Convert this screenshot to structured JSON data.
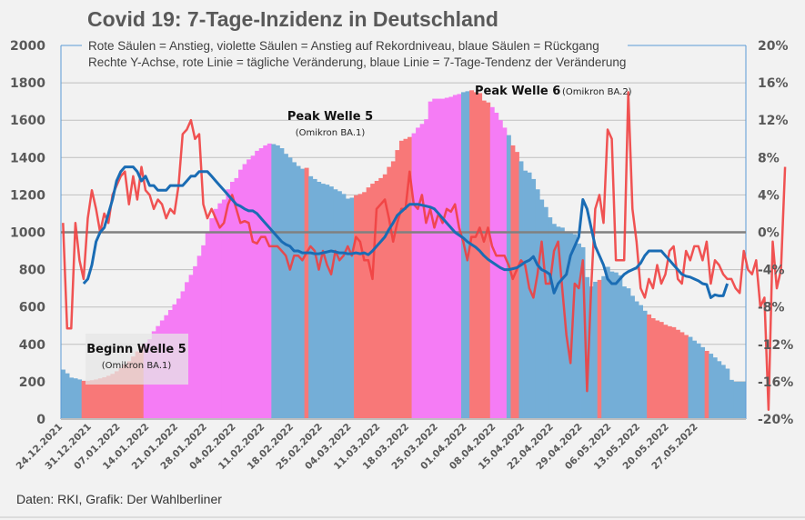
{
  "title": "Covid 19: 7-Tage-Inzidenz in Deutschland",
  "source": "Daten: RKI, Grafik: Der Wahlberliner",
  "chart_data": {
    "type": "bar",
    "title": "Covid 19: 7-Tage-Inzidenz in Deutschland",
    "subtitle_lines": [
      "Rote Säulen = Anstieg, violette Säulen = Anstieg auf Rekordniveau, blaue Säulen = Rückgang",
      "Rechte Y-Achse, rote Linie = tägliche Veränderung, blaue Linie = 7-Tage-Tendenz der Veränderung"
    ],
    "xlabel": "",
    "ylabel": "",
    "ylim": [
      0,
      2000
    ],
    "y_ticks": [
      "0",
      "200",
      "400",
      "600",
      "800",
      "1000",
      "1200",
      "1400",
      "1600",
      "1800",
      "2000"
    ],
    "y2lim": [
      -20,
      20
    ],
    "y2_ticks": [
      "-20%",
      "-16%",
      "-12%",
      "-8%",
      "-4%",
      "0%",
      "4%",
      "8%",
      "12%",
      "16%",
      "20%"
    ],
    "x_tick_labels": [
      "24.12.2021",
      "31.12.2021",
      "07.01.2022",
      "14.01.2022",
      "21.01.2022",
      "28.01.2022",
      "04.02.2022",
      "11.02.2022",
      "18.02.2022",
      "25.02.2022",
      "04.03.2022",
      "11.03.2022",
      "18.03.2022",
      "25.03.2022",
      "01.04.2022",
      "08.04.2022",
      "15.04.2022",
      "22.04.2022",
      "29.04.2022",
      "06.05.2022",
      "13.05.2022",
      "20.05.2022",
      "27.05.2022"
    ],
    "grid": true,
    "colors": {
      "rise": "#f87878",
      "record": "#f57cf5",
      "decline": "#74aed7",
      "daily_line": "#ef4040",
      "trend_line": "#1a6cb4",
      "zero_line": "#808080"
    },
    "bar_categories_legend": {
      "rise": "Anstieg",
      "record": "Anstieg auf Rekordniveau",
      "decline": "Rückgang"
    },
    "series": [
      {
        "name": "7-Tage-Inzidenz",
        "axis": "left",
        "kind": "bar",
        "values": [
          265,
          245,
          222,
          218,
          212,
          205,
          205,
          208,
          212,
          218,
          224,
          232,
          242,
          256,
          274,
          292,
          310,
          335,
          362,
          388,
          407,
          428,
          470,
          498,
          528,
          556,
          584,
          614,
          645,
          684,
          733,
          772,
          818,
          874,
          930,
          1000,
          1075,
          1125,
          1155,
          1175,
          1230,
          1270,
          1290,
          1335,
          1365,
          1390,
          1410,
          1436,
          1450,
          1465,
          1475,
          1472,
          1465,
          1450,
          1420,
          1400,
          1375,
          1355,
          1340,
          1345,
          1300,
          1285,
          1270,
          1260,
          1255,
          1245,
          1230,
          1220,
          1205,
          1180,
          1185,
          1198,
          1205,
          1215,
          1240,
          1260,
          1275,
          1290,
          1310,
          1350,
          1380,
          1440,
          1490,
          1500,
          1510,
          1530,
          1560,
          1580,
          1605,
          1700,
          1715,
          1715,
          1715,
          1720,
          1725,
          1735,
          1740,
          1750,
          1755,
          1760,
          1750,
          1745,
          1705,
          1695,
          1670,
          1640,
          1600,
          1560,
          1520,
          1465,
          1430,
          1380,
          1330,
          1320,
          1285,
          1230,
          1175,
          1135,
          1080,
          1045,
          1030,
          1025,
          1005,
          1000,
          990,
          940,
          920,
          760,
          710,
          735,
          745,
          765,
          815,
          790,
          785,
          770,
          710,
          700,
          660,
          630,
          610,
          580,
          560,
          540,
          528,
          520,
          505,
          497,
          492,
          478,
          465,
          450,
          440,
          420,
          405,
          385,
          365,
          350,
          330,
          310,
          290,
          270,
          210,
          200,
          200,
          200
        ],
        "colors": [
          "decline",
          "decline",
          "decline",
          "decline",
          "decline",
          "rise",
          "rise",
          "rise",
          "rise",
          "rise",
          "rise",
          "rise",
          "rise",
          "rise",
          "rise",
          "rise",
          "rise",
          "rise",
          "rise",
          "rise",
          "record",
          "record",
          "record",
          "record",
          "record",
          "record",
          "record",
          "record",
          "record",
          "record",
          "record",
          "record",
          "record",
          "record",
          "record",
          "record",
          "record",
          "record",
          "record",
          "record",
          "record",
          "record",
          "record",
          "record",
          "record",
          "record",
          "record",
          "record",
          "record",
          "record",
          "record",
          "decline",
          "decline",
          "decline",
          "decline",
          "decline",
          "decline",
          "decline",
          "decline",
          "rise",
          "decline",
          "decline",
          "decline",
          "decline",
          "decline",
          "decline",
          "decline",
          "decline",
          "decline",
          "decline",
          "decline",
          "rise",
          "rise",
          "rise",
          "rise",
          "rise",
          "rise",
          "rise",
          "rise",
          "rise",
          "rise",
          "rise",
          "rise",
          "rise",
          "rise",
          "record",
          "record",
          "record",
          "record",
          "record",
          "record",
          "record",
          "record",
          "record",
          "record",
          "record",
          "record",
          "decline",
          "decline",
          "rise",
          "rise",
          "rise",
          "rise",
          "rise",
          "record",
          "record",
          "record",
          "record",
          "decline",
          "rise",
          "rise",
          "decline",
          "decline",
          "decline",
          "decline",
          "decline",
          "decline",
          "decline",
          "decline",
          "decline",
          "decline",
          "decline",
          "decline",
          "decline",
          "decline",
          "decline",
          "decline",
          "decline",
          "decline",
          "decline",
          "rise",
          "decline",
          "decline",
          "decline",
          "decline",
          "decline",
          "decline",
          "decline",
          "decline",
          "decline",
          "decline",
          "decline",
          "rise",
          "rise",
          "rise",
          "rise",
          "rise",
          "rise",
          "rise",
          "rise",
          "rise",
          "rise",
          "decline",
          "decline",
          "decline",
          "decline",
          "rise",
          "decline",
          "decline",
          "decline",
          "decline",
          "decline",
          "decline",
          "decline",
          "decline",
          "decline",
          "decline",
          "decline",
          "decline",
          "decline",
          "decline",
          "rise"
        ]
      },
      {
        "name": "Tägliche Veränderung",
        "axis": "right",
        "kind": "line",
        "values": [
          1,
          -10.3,
          -10.3,
          1,
          -3,
          -5,
          1.5,
          4.5,
          2.5,
          0,
          2,
          1,
          4,
          5,
          6,
          6.5,
          3,
          6,
          3.5,
          7,
          4.5,
          4,
          2.5,
          3.5,
          3,
          1.5,
          2.5,
          2,
          5,
          10.5,
          11,
          12,
          10,
          10.5,
          3,
          1.5,
          2.5,
          1.5,
          0.5,
          1,
          3,
          4,
          2.5,
          1,
          1.2,
          1,
          -1,
          -1.2,
          -0.5,
          -0.5,
          -1.5,
          -1.5,
          -1.5,
          -2,
          -2.5,
          -4,
          -2.5,
          -2.5,
          -3,
          -2.2,
          -1.5,
          -2,
          -4,
          -2,
          -3.5,
          -4.5,
          -2,
          -3,
          -2.5,
          -1.5,
          -2.5,
          -0.5,
          -1,
          -3,
          -3,
          -5,
          2.5,
          3,
          3.5,
          1.5,
          -1,
          1,
          2.5,
          2.5,
          6.5,
          3,
          2.5,
          4,
          1,
          2.5,
          0.5,
          2,
          1,
          2.5,
          2.2,
          3,
          0.5,
          -1,
          -3,
          -0.5,
          -0.5,
          0.5,
          -1,
          0.5,
          -1.5,
          -2.5,
          -2.5,
          -2.5,
          -3.5,
          -5,
          -4,
          -3,
          -3.5,
          -6,
          -7,
          -4.5,
          -1,
          -5.5,
          -5.5,
          -2,
          -1,
          -6,
          -11,
          -14,
          -5.5,
          -6,
          -3,
          -17,
          -6,
          2.5,
          4,
          1,
          11,
          10,
          -3,
          -3,
          -3,
          15,
          2.5,
          -1,
          -6,
          -7,
          -5,
          -6,
          -3.5,
          -5.5,
          -4.5,
          -2,
          -1.5,
          -5,
          -5.5,
          -2,
          -3,
          -1.5,
          -1.5,
          -3,
          -1,
          -5.5,
          -3,
          -3.5,
          -4.5,
          -5,
          -5,
          -6,
          -6.5,
          -2,
          -4,
          -4.5,
          -3,
          -8,
          -7,
          -19,
          -1,
          -6,
          -4,
          7
        ]
      },
      {
        "name": "7-Tage-Tendenz",
        "axis": "right",
        "kind": "line",
        "start_index": 5,
        "values": [
          -5.5,
          -5,
          -3.5,
          -1,
          0,
          0.5,
          2,
          3.5,
          5.5,
          6.5,
          7,
          7,
          7,
          6.5,
          5.5,
          6,
          5,
          5,
          4.5,
          4.5,
          4.5,
          5,
          5,
          5,
          5,
          5.5,
          6,
          6,
          6.5,
          6.5,
          6.5,
          6,
          5.5,
          5,
          4.5,
          4,
          3.5,
          3,
          2.8,
          2.5,
          2.3,
          2.3,
          2,
          1.5,
          1,
          0.5,
          0,
          -0.5,
          -1,
          -1.3,
          -1.5,
          -2,
          -2,
          -2.2,
          -2.2,
          -2.2,
          -2.3,
          -2.3,
          -2.2,
          -2.1,
          -2,
          -2.1,
          -2.2,
          -2.2,
          -2.3,
          -2.3,
          -2.2,
          -2.3,
          -2.2,
          -2.4,
          -2,
          -1.5,
          -1,
          -0.5,
          0.3,
          1,
          1.8,
          2.2,
          2.6,
          3,
          3,
          3,
          2.9,
          2.8,
          2.7,
          2.5,
          2,
          1.5,
          1,
          0.5,
          0,
          -0.3,
          -0.6,
          -1,
          -1.3,
          -1.6,
          -2,
          -2.5,
          -2.9,
          -3.2,
          -3.5,
          -3.8,
          -4,
          -4,
          -3.9,
          -3.8,
          -3.5,
          -3.2,
          -3,
          -2.6,
          -3.5,
          -4,
          -4.2,
          -4.5,
          -6.5,
          -5.5,
          -5,
          -4.5,
          -2.5,
          -1.5,
          -0.5,
          3.5,
          2.5,
          0.5,
          -1.5,
          -2.5,
          -3.5,
          -5,
          -5.5,
          -5.5,
          -5,
          -4.5,
          -4.2,
          -4,
          -3.8,
          -3.3,
          -2.5,
          -2,
          -2,
          -2,
          -2,
          -2.5,
          -3,
          -3.5,
          -4,
          -4.5,
          -4.7,
          -4.8,
          -5,
          -5.2,
          -5.5,
          -5.6,
          -7,
          -6.7,
          -6.8,
          -6.8,
          -5.5
        ]
      }
    ],
    "annotations": [
      {
        "title": "Beginn Welle 5",
        "sub": "(Omikron BA.1)"
      },
      {
        "title": "Peak Welle 5",
        "sub": "(Omikron BA.1)"
      },
      {
        "title": "Peak Welle 6",
        "sub": "(Omikron BA.2)"
      }
    ]
  }
}
